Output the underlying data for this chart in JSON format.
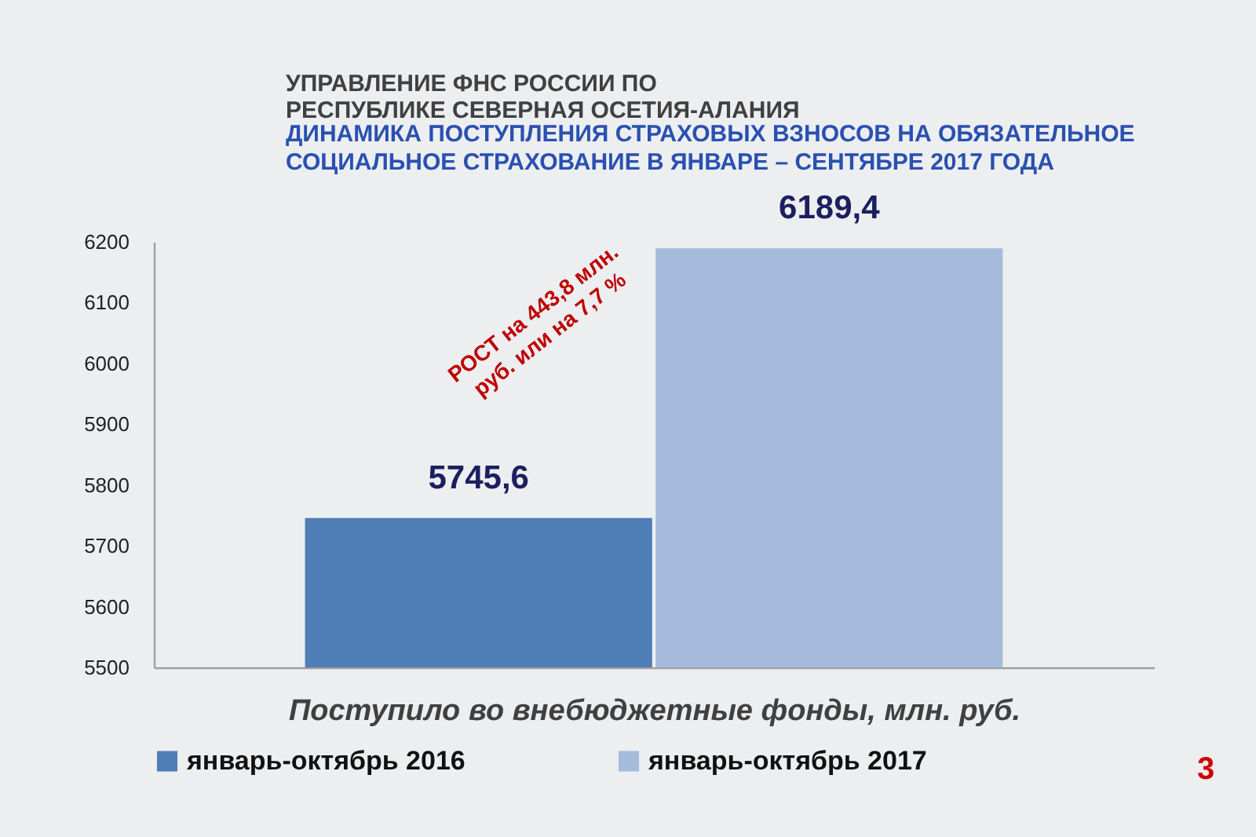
{
  "chart_data": {
    "type": "bar",
    "title": "ДИНАМИКА ПОСТУПЛЕНИЯ СТРАХОВЫХ ВЗНОСОВ НА ОБЯЗАТЕЛЬНОЕ СОЦИАЛЬНОЕ СТРАХОВАНИЕ В ЯНВАРЕ – СЕНТЯБРЕ 2017 ГОДА",
    "subtitle": "УПРАВЛЕНИЕ ФНС РОССИИ ПО РЕСПУБЛИКЕ СЕВЕРНАЯ ОСЕТИЯ-АЛАНИЯ",
    "xlabel": "Поступило во внебюджетные фонды, млн. руб.",
    "categories": [
      null
    ],
    "series": [
      {
        "name": "январь-октябрь 2016",
        "color": "#4f7db5",
        "values": [
          5745.6
        ],
        "value_labels": [
          "5745,6"
        ]
      },
      {
        "name": "январь-октябрь 2017",
        "color": "#a6bbdc",
        "values": [
          6189.4
        ],
        "value_labels": [
          "6189,4"
        ]
      }
    ],
    "ylim": [
      5500,
      6200
    ],
    "yticks": [
      5500,
      5600,
      5700,
      5800,
      5900,
      6000,
      6100,
      6200
    ],
    "legend": "bottom",
    "tick_labels": "y",
    "annotations": [
      "РОСТ на 443,8 млн. руб. или на 7,7 %",
      "3"
    ]
  }
}
